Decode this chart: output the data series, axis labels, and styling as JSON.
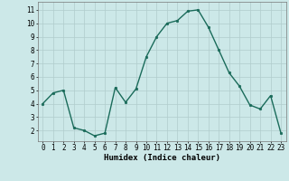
{
  "x": [
    0,
    1,
    2,
    3,
    4,
    5,
    6,
    7,
    8,
    9,
    10,
    11,
    12,
    13,
    14,
    15,
    16,
    17,
    18,
    19,
    20,
    21,
    22,
    23
  ],
  "y": [
    4.0,
    4.8,
    5.0,
    2.2,
    2.0,
    1.6,
    1.8,
    5.2,
    4.1,
    5.1,
    7.5,
    9.0,
    10.0,
    10.2,
    10.9,
    11.0,
    9.7,
    8.0,
    6.3,
    5.3,
    3.9,
    3.6,
    4.6,
    1.8
  ],
  "line_color": "#1a6b5a",
  "marker": "o",
  "markersize": 1.8,
  "linewidth": 1.0,
  "xlabel": "Humidex (Indice chaleur)",
  "xlabel_fontsize": 6.5,
  "ylabel_ticks": [
    2,
    3,
    4,
    5,
    6,
    7,
    8,
    9,
    10,
    11
  ],
  "xlim": [
    -0.5,
    23.5
  ],
  "ylim": [
    1.2,
    11.6
  ],
  "bg_color": "#cce8e8",
  "grid_color": "#b0cccc",
  "tick_fontsize": 5.5
}
